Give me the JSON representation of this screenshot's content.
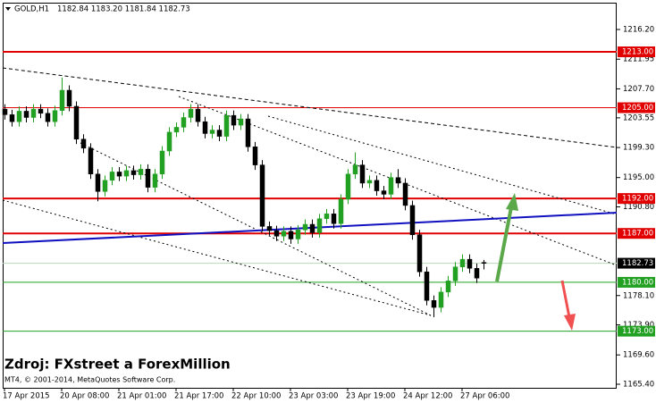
{
  "chart_data": {
    "type": "candlestick",
    "header": {
      "symbol": "GOLD,H1",
      "ohlc": "1182.84 1183.20 1181.84 1182.73"
    },
    "watermark": "Zdroj: FXstreet a ForexMillion",
    "copyright": "MT4, © 2001-2014, MetaQuotes Software Corp.",
    "categories": [
      "17 Apr 2015",
      null,
      null,
      null,
      null,
      null,
      null,
      null,
      "20 Apr 08:00",
      null,
      null,
      null,
      null,
      null,
      null,
      null,
      "21 Apr 01:00",
      null,
      null,
      null,
      null,
      null,
      null,
      null,
      "21 Apr 17:00",
      null,
      null,
      null,
      null,
      null,
      null,
      null,
      "22 Apr 10:00",
      null,
      null,
      null,
      null,
      null,
      null,
      null,
      "23 Apr 03:00",
      null,
      null,
      null,
      null,
      null,
      null,
      null,
      "23 Apr 19:00",
      null,
      null,
      null,
      null,
      null,
      null,
      null,
      "24 Apr 12:00",
      null,
      null,
      null,
      null,
      null,
      null,
      null,
      "27 Apr 06:00",
      null,
      null,
      null
    ],
    "open": [
      1204.8,
      1204.0,
      1203.0,
      1204.5,
      1203.6,
      1204.8,
      1204.2,
      1203.0,
      1204.6,
      1207.5,
      1205.2,
      1200.5,
      1199.2,
      1195.5,
      1193.0,
      1194.6,
      1195.8,
      1195.2,
      1196.0,
      1195.4,
      1196.2,
      1193.6,
      1195.5,
      1198.8,
      1201.5,
      1202.2,
      1203.6,
      1204.8,
      1203.0,
      1201.3,
      1201.8,
      1200.9,
      1203.9,
      1202.5,
      1203.4,
      1199.4,
      1196.8,
      1188.0,
      1187.4,
      1186.6,
      1187.3,
      1186.2,
      1187.5,
      1188.3,
      1187.1,
      1189.1,
      1189.8,
      1188.4,
      1191.9,
      1195.5,
      1196.8,
      1194.2,
      1194.6,
      1193.1,
      1192.6,
      1195.0,
      1194.2,
      1191.0,
      1186.8,
      1181.5,
      1177.4,
      1176.4,
      1178.6,
      1180.2,
      1182.2,
      1183.3,
      1182.0,
      1182.84
    ],
    "high": [
      1205.5,
      1204.7,
      1205.2,
      1205.2,
      1205.5,
      1205.5,
      1204.9,
      1205.3,
      1209.3,
      1208.2,
      1205.9,
      1201.2,
      1199.9,
      1196.2,
      1195.3,
      1196.5,
      1196.5,
      1196.7,
      1196.7,
      1196.9,
      1196.9,
      1196.2,
      1199.5,
      1202.2,
      1202.9,
      1204.3,
      1205.5,
      1205.5,
      1203.7,
      1202.5,
      1202.5,
      1204.6,
      1204.6,
      1204.1,
      1204.1,
      1200.1,
      1197.5,
      1188.7,
      1188.1,
      1188.0,
      1188.0,
      1188.2,
      1189.0,
      1189.0,
      1189.8,
      1190.5,
      1190.5,
      1192.6,
      1196.2,
      1198.6,
      1197.5,
      1195.3,
      1195.3,
      1193.8,
      1195.7,
      1196.2,
      1194.9,
      1191.7,
      1187.5,
      1182.2,
      1178.1,
      1179.3,
      1180.9,
      1182.9,
      1184.0,
      1184.0,
      1182.7,
      1183.2
    ],
    "low": [
      1203.3,
      1202.3,
      1202.3,
      1202.9,
      1202.9,
      1203.5,
      1202.3,
      1202.3,
      1203.9,
      1204.5,
      1199.8,
      1198.5,
      1194.8,
      1191.6,
      1192.3,
      1193.9,
      1194.5,
      1194.5,
      1194.7,
      1194.7,
      1192.9,
      1192.9,
      1194.8,
      1198.1,
      1200.8,
      1201.5,
      1202.9,
      1202.3,
      1200.6,
      1200.6,
      1200.2,
      1200.2,
      1201.8,
      1201.8,
      1198.7,
      1196.1,
      1187.3,
      1186.7,
      1185.9,
      1185.9,
      1185.5,
      1185.5,
      1186.8,
      1186.4,
      1186.4,
      1188.4,
      1187.7,
      1187.7,
      1191.2,
      1194.8,
      1193.5,
      1193.5,
      1192.4,
      1191.9,
      1191.9,
      1193.5,
      1190.3,
      1186.1,
      1180.8,
      1176.7,
      1175.0,
      1175.7,
      1177.9,
      1179.5,
      1181.5,
      1181.3,
      1179.9,
      1181.84
    ],
    "close": [
      1204.0,
      1203.0,
      1204.5,
      1203.6,
      1204.8,
      1204.2,
      1203.0,
      1204.6,
      1207.5,
      1205.2,
      1200.5,
      1199.2,
      1195.5,
      1193.0,
      1194.6,
      1195.8,
      1195.2,
      1196.0,
      1195.4,
      1196.2,
      1193.6,
      1195.5,
      1198.8,
      1201.5,
      1202.2,
      1203.6,
      1204.8,
      1203.0,
      1201.3,
      1201.8,
      1200.9,
      1203.9,
      1202.5,
      1203.4,
      1199.4,
      1196.8,
      1188.0,
      1187.4,
      1186.6,
      1187.3,
      1186.2,
      1187.5,
      1188.3,
      1187.1,
      1189.1,
      1189.8,
      1188.4,
      1191.9,
      1195.5,
      1196.8,
      1194.2,
      1194.6,
      1193.1,
      1192.6,
      1195.0,
      1194.2,
      1191.0,
      1186.8,
      1181.5,
      1177.4,
      1176.4,
      1178.6,
      1180.2,
      1182.2,
      1183.3,
      1182.0,
      1180.6,
      1182.73
    ],
    "up_color": "#22a022",
    "down_color": "#000000",
    "ylim": [
      1164.89,
      1220.04
    ],
    "yticks": [
      {
        "value": 1216.2,
        "label": "1216.20"
      },
      {
        "value": 1211.95,
        "label": "1211.95"
      },
      {
        "value": 1207.7,
        "label": "1207.70"
      },
      {
        "value": 1203.55,
        "label": "1203.55"
      },
      {
        "value": 1199.3,
        "label": "1199.30"
      },
      {
        "value": 1195.0,
        "label": "1195.00"
      },
      {
        "value": 1190.8,
        "label": "1190.80"
      },
      {
        "value": 1178.1,
        "label": "1178.10"
      },
      {
        "value": 1173.9,
        "label": "1173.90"
      },
      {
        "value": 1169.6,
        "label": "1169.60"
      },
      {
        "value": 1165.4,
        "label": "1165.40"
      }
    ],
    "levels": [
      {
        "value": 1213.0,
        "label": "1213.00",
        "color": "#e00000",
        "line_width": 2
      },
      {
        "value": 1205.0,
        "label": "1205.00",
        "color": "#e00000",
        "line_width": 1
      },
      {
        "value": 1192.0,
        "label": "1192.00",
        "color": "#e00000",
        "line_width": 2
      },
      {
        "value": 1187.0,
        "label": "1187.00",
        "color": "#e00000",
        "line_width": 2
      },
      {
        "value": 1182.73,
        "label": "1182.73",
        "color": "#000000",
        "line_color": "#b8d8b8",
        "line_width": 1
      },
      {
        "value": 1180.0,
        "label": "1180.00",
        "color": "#22a022",
        "line_width": 1
      },
      {
        "value": 1173.0,
        "label": "1173.00",
        "color": "#22a022",
        "line_width": 1
      }
    ],
    "grid": false
  }
}
